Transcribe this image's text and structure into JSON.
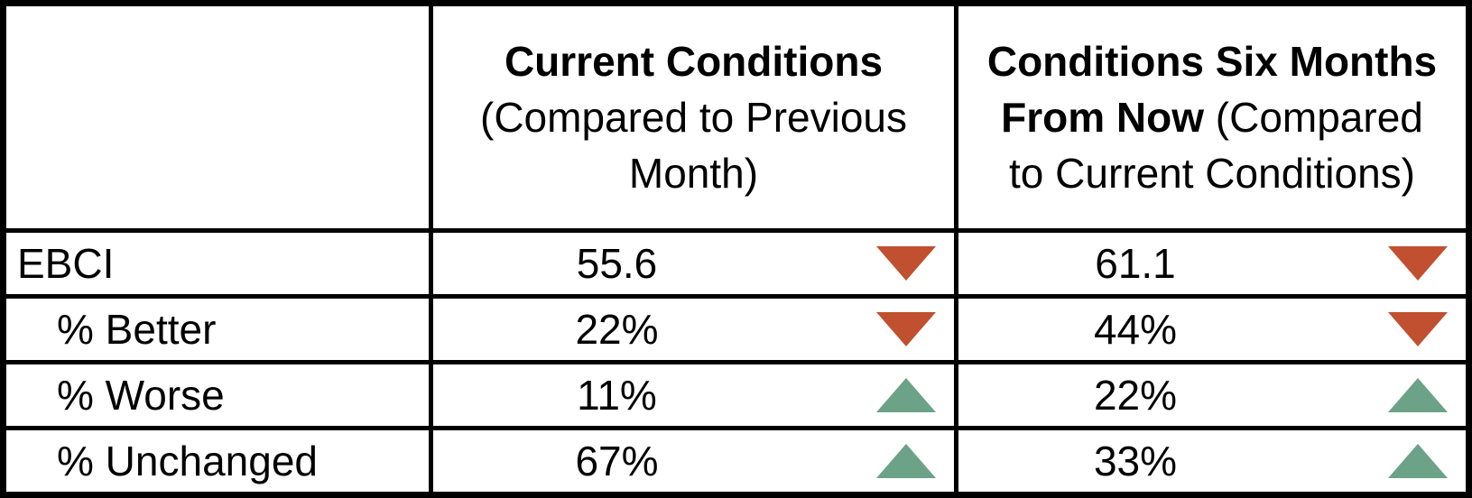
{
  "table": {
    "corner_label": "",
    "columns": [
      {
        "line1_bold": "Current Conditions",
        "line2_bold": "",
        "line2_rest": "(Compared to Previous",
        "line3": "Month)",
        "full_title": "Current Conditions (Compared to Previous Month)"
      },
      {
        "line1_bold": "Conditions Six Months",
        "line2_bold": "From Now",
        "line2_rest": " (Compared",
        "line3": "to Current Conditions)",
        "full_title": "Conditions Six Months From Now (Compared to Current Conditions)"
      }
    ],
    "rows": [
      {
        "label": "EBCI",
        "indent": "false",
        "current": {
          "value": "55.6",
          "direction": "down"
        },
        "future": {
          "value": "61.1",
          "direction": "down"
        }
      },
      {
        "label": "% Better",
        "indent": "true",
        "current": {
          "value": "22%",
          "direction": "down"
        },
        "future": {
          "value": "44%",
          "direction": "down"
        }
      },
      {
        "label": "% Worse",
        "indent": "true",
        "current": {
          "value": "11%",
          "direction": "up"
        },
        "future": {
          "value": "22%",
          "direction": "up"
        }
      },
      {
        "label": "% Unchanged",
        "indent": "true",
        "current": {
          "value": "67%",
          "direction": "up"
        },
        "future": {
          "value": "33%",
          "direction": "up"
        }
      }
    ],
    "colors": {
      "up_arrow": "#6CA287",
      "down_arrow": "#C0502F",
      "border": "#000000",
      "text": "#000000"
    }
  }
}
